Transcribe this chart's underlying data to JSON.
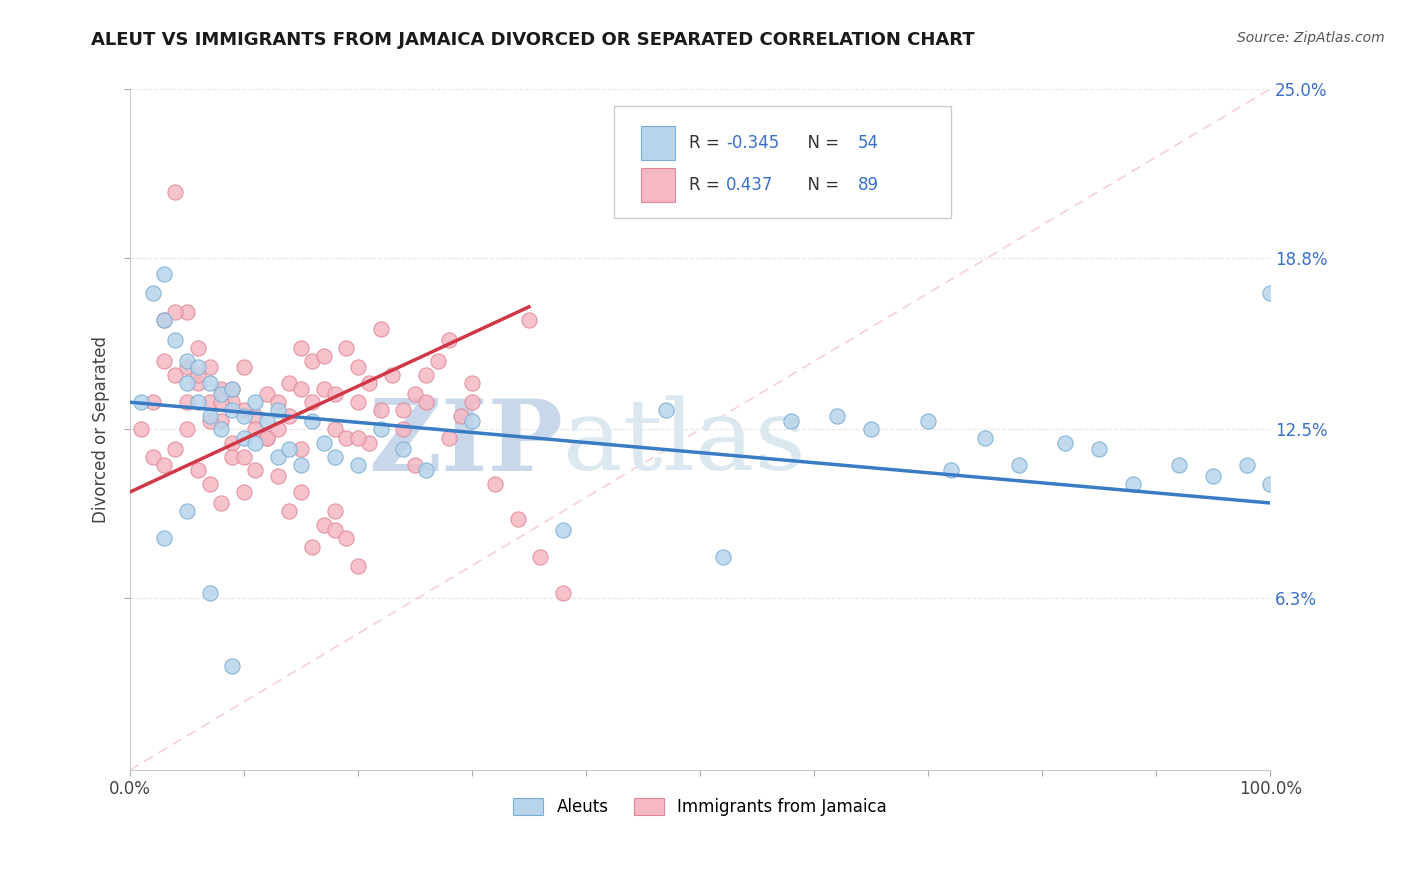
{
  "title": "ALEUT VS IMMIGRANTS FROM JAMAICA DIVORCED OR SEPARATED CORRELATION CHART",
  "source": "Source: ZipAtlas.com",
  "ylabel": "Divorced or Separated",
  "xlim": [
    0,
    100
  ],
  "ylim": [
    0,
    25
  ],
  "ytick_vals": [
    6.3,
    12.5,
    18.8,
    25.0
  ],
  "xtick_vals": [
    0,
    10,
    20,
    30,
    40,
    50,
    60,
    70,
    80,
    90,
    100
  ],
  "aleut_color": "#b8d4ea",
  "aleut_edge": "#7aaed4",
  "jamaica_color": "#f5b8c4",
  "jamaica_edge": "#e08898",
  "aleut_line_color": "#3a7cc4",
  "jamaica_line_color": "#d03848",
  "diagonal_color": "#f0b0be",
  "r_aleut": -0.345,
  "n_aleut": 54,
  "r_jamaica": 0.437,
  "n_jamaica": 89,
  "legend_color": "#3a6fcc",
  "title_color": "#1a1a1a",
  "source_color": "#555555",
  "grid_color": "#e8e8e8",
  "background": "#ffffff",
  "aleut_trendline_x": [
    0,
    100
  ],
  "aleut_trendline_y": [
    13.5,
    9.8
  ],
  "jamaica_trendline_x": [
    0,
    35
  ],
  "jamaica_trendline_y": [
    10.2,
    17.0
  ],
  "aleut_scatter_x": [
    1,
    2,
    3,
    3,
    4,
    5,
    5,
    6,
    6,
    7,
    7,
    8,
    8,
    9,
    9,
    10,
    10,
    11,
    11,
    12,
    13,
    13,
    14,
    15,
    16,
    17,
    18,
    20,
    22,
    24,
    26,
    3,
    5,
    7,
    9,
    47,
    52,
    58,
    62,
    65,
    70,
    72,
    75,
    78,
    82,
    85,
    88,
    92,
    95,
    98,
    100,
    100,
    38,
    30
  ],
  "aleut_scatter_y": [
    13.5,
    17.5,
    18.2,
    16.5,
    15.8,
    15.0,
    14.2,
    14.8,
    13.5,
    14.2,
    13.0,
    13.8,
    12.5,
    13.2,
    14.0,
    13.0,
    12.2,
    13.5,
    12.0,
    12.8,
    13.2,
    11.5,
    11.8,
    11.2,
    12.8,
    12.0,
    11.5,
    11.2,
    12.5,
    11.8,
    11.0,
    8.5,
    9.5,
    6.5,
    3.8,
    13.2,
    7.8,
    12.8,
    13.0,
    12.5,
    12.8,
    11.0,
    12.2,
    11.2,
    12.0,
    11.8,
    10.5,
    11.2,
    10.8,
    11.2,
    17.5,
    10.5,
    8.8,
    12.8
  ],
  "jamaica_scatter_x": [
    1,
    2,
    3,
    3,
    4,
    4,
    5,
    5,
    6,
    6,
    7,
    7,
    8,
    8,
    9,
    9,
    10,
    10,
    11,
    11,
    12,
    12,
    13,
    13,
    14,
    14,
    15,
    15,
    16,
    16,
    17,
    17,
    18,
    18,
    19,
    19,
    20,
    20,
    21,
    21,
    22,
    23,
    24,
    25,
    26,
    27,
    28,
    29,
    30,
    2,
    3,
    4,
    5,
    6,
    7,
    8,
    9,
    10,
    11,
    12,
    13,
    14,
    15,
    16,
    17,
    18,
    19,
    20,
    4,
    5,
    6,
    7,
    8,
    9,
    10,
    24,
    25,
    28,
    30,
    32,
    34,
    36,
    38,
    35,
    22,
    26,
    20,
    15,
    18
  ],
  "jamaica_scatter_y": [
    12.5,
    13.5,
    16.5,
    15.0,
    21.2,
    14.5,
    16.8,
    13.5,
    15.5,
    14.2,
    14.8,
    13.5,
    14.0,
    12.8,
    13.5,
    12.0,
    14.8,
    13.2,
    13.0,
    12.5,
    13.8,
    12.2,
    13.5,
    12.5,
    14.2,
    13.0,
    15.5,
    14.0,
    15.0,
    13.5,
    15.2,
    14.0,
    13.8,
    12.5,
    12.2,
    15.5,
    13.5,
    14.8,
    14.2,
    12.0,
    13.2,
    14.5,
    13.2,
    13.8,
    14.5,
    15.0,
    12.2,
    13.0,
    14.2,
    11.5,
    11.2,
    11.8,
    12.5,
    11.0,
    10.5,
    9.8,
    11.5,
    10.2,
    11.0,
    12.2,
    10.8,
    9.5,
    10.2,
    8.2,
    9.0,
    8.8,
    8.5,
    7.5,
    16.8,
    14.8,
    14.5,
    12.8,
    13.5,
    14.0,
    11.5,
    12.5,
    11.2,
    15.8,
    13.5,
    10.5,
    9.2,
    7.8,
    6.5,
    16.5,
    16.2,
    13.5,
    12.2,
    11.8,
    9.5
  ]
}
